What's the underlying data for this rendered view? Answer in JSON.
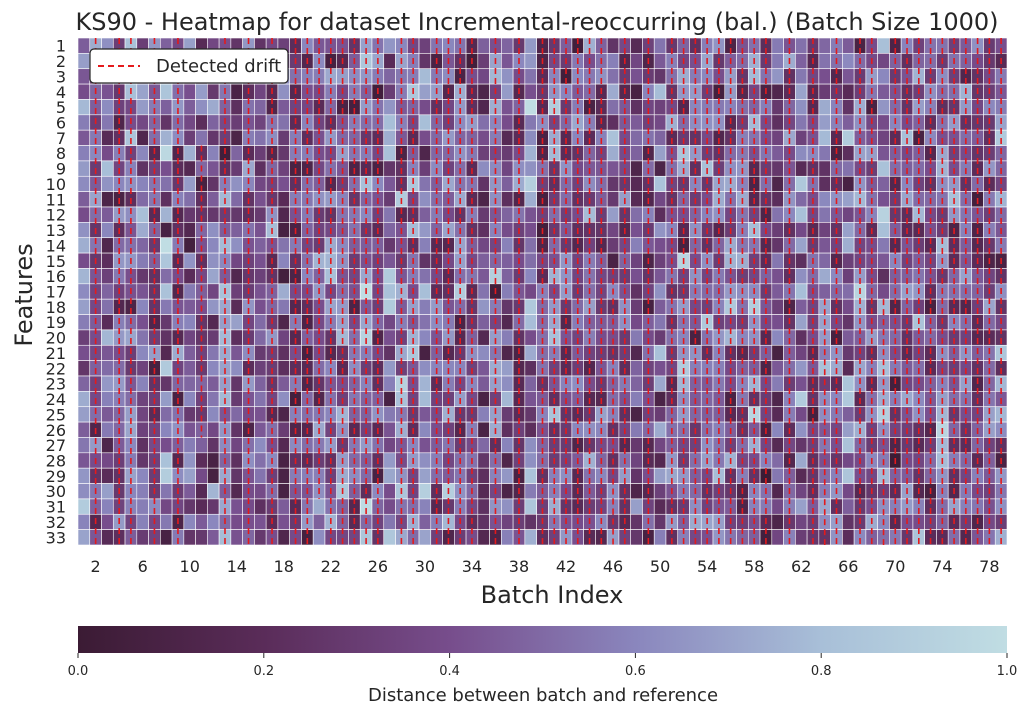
{
  "chart_data": {
    "type": "heatmap",
    "title": "KS90 - Heatmap for dataset Incremental-reoccurring (bal.) (Batch Size 1000)",
    "xlabel": "Batch Index",
    "ylabel": "Features",
    "x_tick_labels": [
      "2",
      "6",
      "10",
      "14",
      "18",
      "22",
      "26",
      "30",
      "34",
      "38",
      "42",
      "46",
      "50",
      "54",
      "58",
      "62",
      "66",
      "70",
      "74",
      "78"
    ],
    "y_tick_labels": [
      "1",
      "2",
      "3",
      "4",
      "5",
      "6",
      "7",
      "8",
      "9",
      "10",
      "11",
      "12",
      "13",
      "14",
      "15",
      "16",
      "17",
      "18",
      "19",
      "20",
      "21",
      "22",
      "23",
      "24",
      "25",
      "26",
      "27",
      "28",
      "29",
      "30",
      "31",
      "32",
      "33"
    ],
    "num_batches": 79,
    "first_batch_index": 1,
    "num_features": 33,
    "colorbar": {
      "label": "Distance between batch and reference",
      "range": [
        0.0,
        1.0
      ],
      "ticks": [
        "0.0",
        "0.2",
        "0.4",
        "0.6",
        "0.8",
        "1.0"
      ],
      "colormap": [
        "#3b1b34",
        "#5a2c59",
        "#774d8c",
        "#8a86bd",
        "#a8bfd8",
        "#c0dde3"
      ]
    },
    "legend": {
      "entries": [
        "Detected drift"
      ],
      "position": "upper-left",
      "line_color": "#e41a1c",
      "line_style": "dashed"
    },
    "drift_batches": [
      2,
      4,
      5,
      7,
      9,
      13,
      15,
      17,
      19,
      20,
      22,
      23,
      24,
      25,
      26,
      28,
      29,
      31,
      32,
      34,
      36,
      40,
      41,
      42,
      43,
      44,
      45,
      47,
      49,
      51,
      52,
      53,
      54,
      55,
      56,
      57,
      58,
      59,
      61,
      63,
      65,
      67,
      68,
      70,
      71,
      72,
      74,
      75,
      76,
      77,
      78,
      79
    ],
    "partial_drift": [
      {
        "batch": 11,
        "features": [
          8,
          9,
          10,
          11,
          12,
          13,
          14,
          15,
          16,
          17,
          18,
          19,
          20,
          21,
          22,
          23,
          24,
          25,
          26
        ]
      },
      {
        "batch": 21,
        "features": [
          1,
          2,
          3,
          4,
          5,
          14,
          15,
          16,
          17,
          18,
          19,
          20,
          21,
          22,
          23,
          24,
          25,
          26,
          27,
          28,
          29,
          30
        ]
      },
      {
        "batch": 33,
        "features": [
          1,
          2,
          3,
          4,
          5,
          6,
          7,
          8,
          9,
          10,
          11,
          12,
          13,
          14,
          15,
          16,
          17,
          18,
          19,
          20,
          21,
          22,
          23,
          24,
          25,
          26,
          27,
          28,
          29,
          30,
          31,
          32,
          33
        ]
      },
      {
        "batch": 38,
        "features": [
          1,
          2,
          3,
          4,
          5,
          6,
          7,
          8,
          9,
          10,
          11,
          12,
          13,
          14,
          15,
          16,
          17,
          18,
          19,
          20,
          21,
          22,
          23,
          24,
          25,
          26,
          27,
          28,
          29,
          30,
          31,
          32,
          33
        ]
      },
      {
        "batch": 46,
        "features": [
          16,
          17,
          18,
          19,
          20,
          21,
          22,
          23,
          24,
          25,
          26,
          27,
          28,
          29,
          30,
          31,
          32,
          33
        ]
      },
      {
        "batch": 64,
        "features": [
          18,
          19,
          20,
          21,
          22,
          23,
          24,
          25,
          26,
          27,
          28,
          29,
          30,
          31,
          32,
          33
        ]
      },
      {
        "batch": 69,
        "features": [
          18,
          19,
          20,
          21,
          22,
          23,
          24,
          25,
          26,
          27,
          28,
          29,
          30,
          31,
          32,
          33
        ]
      },
      {
        "batch": 73,
        "features": [
          1,
          2,
          3,
          4,
          5,
          6,
          7,
          8,
          9,
          10,
          11,
          12,
          13,
          14,
          15,
          16,
          17,
          18,
          19,
          20,
          21,
          22,
          23,
          24,
          25,
          26,
          27,
          28,
          29,
          30,
          31,
          32,
          33
        ]
      }
    ],
    "grid": false
  }
}
